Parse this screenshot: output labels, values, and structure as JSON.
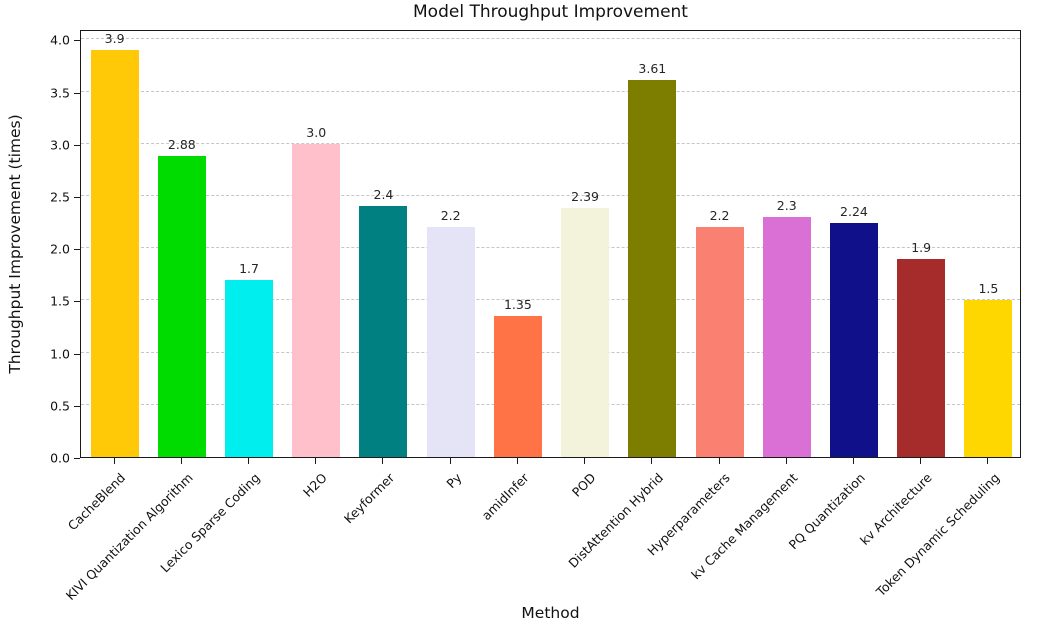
{
  "chart_data": {
    "type": "bar",
    "title": "Model Throughput Improvement",
    "xlabel": "Method",
    "ylabel": "Throughput Improvement (times)",
    "categories": [
      "CacheBlend",
      "KIVI Quantization Algorithm",
      "Lexico Sparse Coding",
      "H2O",
      "Keyformer",
      "Py",
      "amidInfer",
      "POD",
      "DistAttention Hybrid",
      "Hyperparameters",
      "kv Cache Management",
      "PQ Quantization",
      "kv Architecture",
      "Token Dynamic Scheduling"
    ],
    "values": [
      3.9,
      2.88,
      1.7,
      3.0,
      2.4,
      2.2,
      1.35,
      2.39,
      3.61,
      2.2,
      2.3,
      2.24,
      1.9,
      1.5
    ],
    "value_labels": [
      "3.9",
      "2.88",
      "1.7",
      "3.0",
      "2.4",
      "2.2",
      "1.35",
      "2.39",
      "3.61",
      "2.2",
      "2.3",
      "2.24",
      "1.9",
      "1.5"
    ],
    "bar_colors": [
      "#FFC907",
      "#00DB00",
      "#00EEEE",
      "#FFC0CB",
      "#008080",
      "#E4E4F6",
      "#FF7347",
      "#F3F3DC",
      "#7D7D00",
      "#FA8072",
      "#DA70D6",
      "#10108A",
      "#A62B2B",
      "#FFD700"
    ],
    "yticks": [
      "0.0",
      "0.5",
      "1.0",
      "1.5",
      "2.0",
      "2.5",
      "3.0",
      "3.5",
      "4.0"
    ],
    "ytick_values": [
      0.0,
      0.5,
      1.0,
      1.5,
      2.0,
      2.5,
      3.0,
      3.5,
      4.0
    ],
    "ylim": [
      0,
      4.1
    ],
    "grid": "dashed horizontal",
    "grid_color": "#c6c6c6",
    "legend": "none"
  }
}
